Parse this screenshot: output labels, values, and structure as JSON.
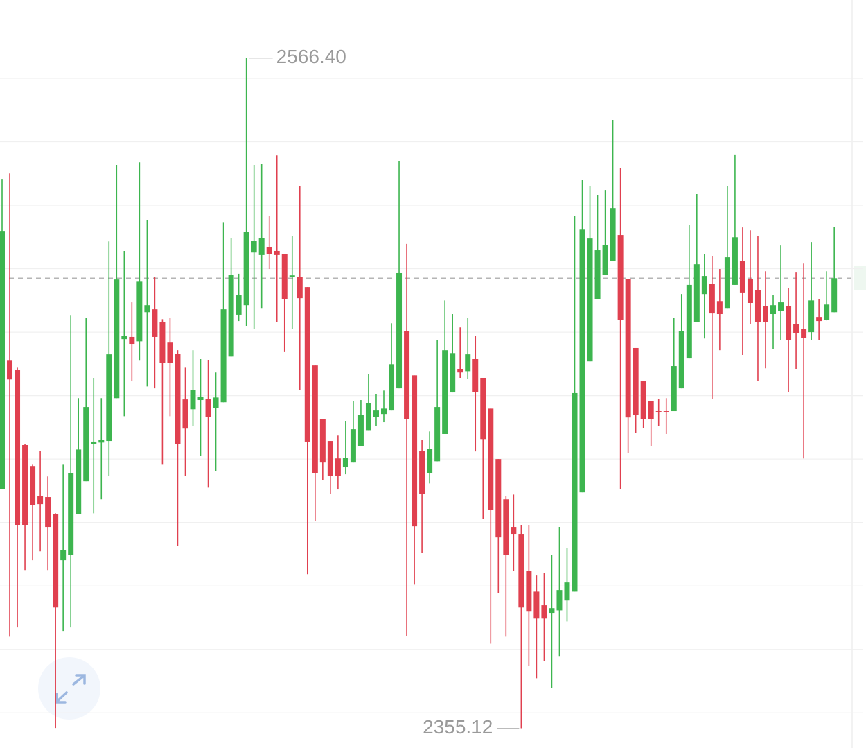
{
  "chart_data": {
    "type": "candlestick",
    "open": [
      2430.6,
      2471.0,
      2468.0,
      2444.4,
      2437.8,
      2428.4,
      2428.0,
      2422.7,
      2408.1,
      2409.8,
      2422.7,
      2433.0,
      2444.8,
      2445.2,
      2445.7,
      2459.2,
      2477.8,
      2478.5,
      2477.1,
      2486.3,
      2487.2,
      2483.1,
      2476.7,
      2473.2,
      2458.8,
      2455.7,
      2458.6,
      2459.0,
      2456.2,
      2457.9,
      2472.3,
      2485.5,
      2488.5,
      2505.1,
      2504.3,
      2506.9,
      2505.6,
      2504.7,
      2497.5,
      2497.3,
      2494.2,
      2469.5,
      2452.7,
      2445.7,
      2440.2,
      2437.4,
      2438.9,
      2444.1,
      2448.9,
      2453.3,
      2454.2,
      2455.3,
      2462.3,
      2480.4,
      2466.4,
      2442.6,
      2435.6,
      2439.3,
      2447.9,
      2461.0,
      2468.4,
      2467.7,
      2471.5,
      2465.6,
      2455.9,
      2440.0,
      2427.3,
      2418.6,
      2416.2,
      2404.8,
      2398.2,
      2393.9,
      2391.5,
      2392.3,
      2395.4,
      2398.2,
      2429.5,
      2470.8,
      2490.3,
      2498.1,
      2502.5,
      2510.6,
      2496.8,
      2475.0,
      2464.5,
      2458.3,
      2455.1,
      2455.1,
      2455.1,
      2462.3,
      2471.7,
      2483.1,
      2492.0,
      2495.1,
      2489.8,
      2487.4,
      2494.9,
      2502.5,
      2496.8,
      2493.3,
      2488.3,
      2485.7,
      2486.8,
      2488.3,
      2482.6,
      2481.1,
      2480.0,
      2484.8,
      2483.9,
      2486.3
    ],
    "high": [
      2528.3,
      2530.0,
      2468.8,
      2444.8,
      2438.2,
      2442.6,
      2434.5,
      2422.9,
      2438.2,
      2485.2,
      2459.2,
      2484.6,
      2465.6,
      2459.2,
      2508.6,
      2532.7,
      2505.6,
      2489.4,
      2533.5,
      2515.2,
      2497.3,
      2484.1,
      2484.4,
      2474.3,
      2468.8,
      2474.3,
      2471.5,
      2471.2,
      2467.3,
      2514.7,
      2509.7,
      2498.4,
      2566.4,
      2532.7,
      2533.1,
      2516.7,
      2535.7,
      2504.7,
      2510.4,
      2526.1,
      2494.2,
      2469.5,
      2452.7,
      2445.7,
      2447.4,
      2452.0,
      2458.3,
      2458.6,
      2466.7,
      2460.5,
      2461.6,
      2482.8,
      2534.0,
      2507.8,
      2466.4,
      2446.1,
      2448.7,
      2477.6,
      2490.0,
      2485.7,
      2481.5,
      2484.4,
      2478.7,
      2465.6,
      2455.9,
      2440.0,
      2428.4,
      2428.8,
      2419.2,
      2419.2,
      2403.3,
      2404.1,
      2409.8,
      2418.6,
      2412.0,
      2516.7,
      2528.1,
      2526.1,
      2523.3,
      2524.8,
      2546.9,
      2531.6,
      2496.8,
      2475.0,
      2464.5,
      2458.3,
      2459.0,
      2459.2,
      2484.4,
      2492.0,
      2513.7,
      2523.5,
      2504.7,
      2504.0,
      2499.9,
      2526.1,
      2536.0,
      2513.0,
      2512.1,
      2510.4,
      2499.2,
      2491.6,
      2507.3,
      2493.8,
      2498.8,
      2501.6,
      2508.4,
      2490.3,
      2499.2,
      2513.2
    ],
    "low": [
      2430.6,
      2384.0,
      2386.9,
      2405.0,
      2408.1,
      2410.9,
      2405.0,
      2355.2,
      2385.8,
      2386.9,
      2422.7,
      2433.0,
      2422.9,
      2427.3,
      2434.7,
      2459.2,
      2453.5,
      2464.5,
      2471.0,
      2462.9,
      2462.3,
      2438.2,
      2453.5,
      2412.7,
      2434.7,
      2450.5,
      2440.9,
      2431.0,
      2436.1,
      2457.9,
      2472.3,
      2483.5,
      2482.0,
      2481.1,
      2487.4,
      2499.9,
      2483.1,
      2473.7,
      2480.9,
      2461.8,
      2403.7,
      2420.5,
      2433.4,
      2429.1,
      2430.4,
      2435.2,
      2438.9,
      2444.1,
      2448.9,
      2450.5,
      2451.6,
      2455.3,
      2462.3,
      2384.2,
      2400.4,
      2410.5,
      2432.3,
      2439.3,
      2447.9,
      2461.0,
      2465.6,
      2465.3,
      2442.4,
      2421.2,
      2381.8,
      2397.8,
      2384.0,
      2404.8,
      2355.12,
      2374.8,
      2370.9,
      2376.4,
      2367.8,
      2377.7,
      2388.8,
      2398.2,
      2429.5,
      2470.8,
      2490.3,
      2498.1,
      2502.5,
      2430.6,
      2442.0,
      2448.3,
      2449.8,
      2444.1,
      2450.5,
      2447.9,
      2455.1,
      2462.3,
      2471.7,
      2483.1,
      2478.0,
      2459.0,
      2474.3,
      2487.4,
      2494.9,
      2472.8,
      2482.6,
      2464.7,
      2468.6,
      2474.7,
      2477.4,
      2461.2,
      2468.4,
      2440.2,
      2477.4,
      2477.6,
      2483.7,
      2486.3
    ],
    "close": [
      2511.9,
      2465.1,
      2419.2,
      2419.2,
      2425.6,
      2425.8,
      2418.6,
      2393.2,
      2411.3,
      2435.6,
      2443.0,
      2456.4,
      2445.5,
      2446.1,
      2473.0,
      2496.6,
      2478.9,
      2476.3,
      2495.9,
      2488.5,
      2478.5,
      2470.2,
      2470.4,
      2444.8,
      2449.6,
      2461.8,
      2459.7,
      2453.3,
      2459.4,
      2487.2,
      2498.1,
      2491.6,
      2511.7,
      2508.8,
      2509.7,
      2504.7,
      2504.3,
      2490.3,
      2497.9,
      2490.7,
      2445.5,
      2435.6,
      2438.9,
      2434.7,
      2434.7,
      2440.4,
      2449.4,
      2453.8,
      2457.7,
      2455.3,
      2455.9,
      2469.9,
      2498.6,
      2452.7,
      2418.8,
      2429.1,
      2443.3,
      2456.4,
      2474.3,
      2473.4,
      2467.3,
      2473.0,
      2461.2,
      2446.3,
      2424.0,
      2415.3,
      2409.8,
      2416.2,
      2393.2,
      2391.9,
      2389.7,
      2389.7,
      2393.0,
      2398.7,
      2401.1,
      2460.8,
      2512.3,
      2509.5,
      2505.8,
      2507.5,
      2519.1,
      2483.9,
      2453.1,
      2453.8,
      2452.7,
      2452.7,
      2454.9,
      2454.9,
      2469.3,
      2480.4,
      2494.9,
      2501.4,
      2497.7,
      2485.9,
      2485.7,
      2503.6,
      2509.9,
      2492.5,
      2489.2,
      2483.1,
      2483.1,
      2488.5,
      2489.4,
      2477.4,
      2479.8,
      2478.2,
      2490.0,
      2483.5,
      2488.7,
      2497.0
    ],
    "up_color": "#3db54f",
    "down_color": "#e0404f",
    "ylim": [
      2348.9,
      2584.7
    ],
    "yticks": [
      2360,
      2380,
      2400,
      2420,
      2440,
      2460,
      2480,
      2500,
      2520,
      2540,
      2560
    ],
    "grid": true,
    "current_price": 2497,
    "max_label": {
      "value": 2566.4,
      "label": "2566.40"
    },
    "min_label": {
      "value": 2355.12,
      "label": "2355.12"
    }
  }
}
